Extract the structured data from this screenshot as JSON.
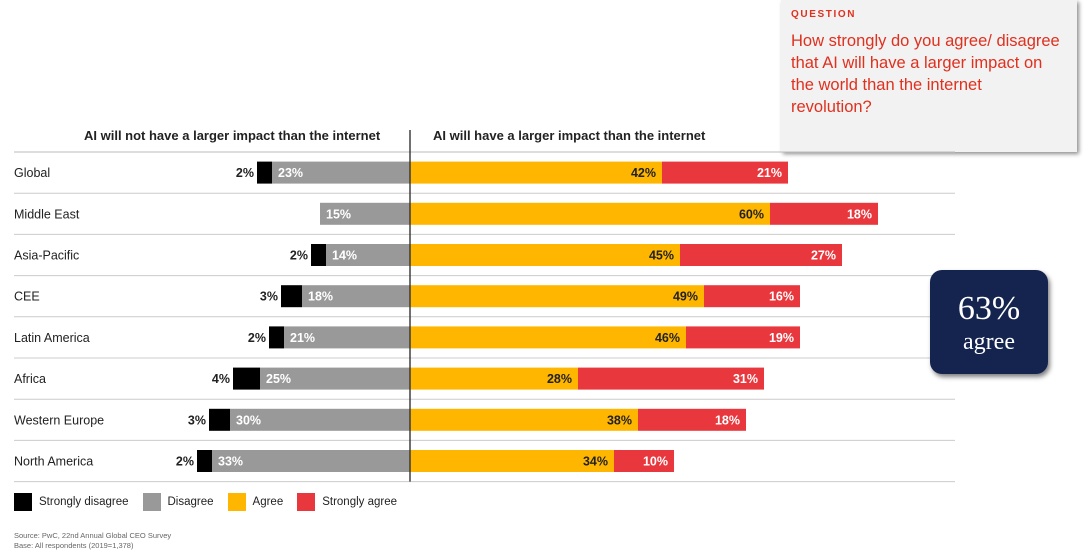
{
  "question": {
    "label": "QUESTION",
    "text": "How strongly do you agree/ disagree that AI will have a larger impact on the world than the internet revolution?"
  },
  "badge": {
    "value": "63%",
    "label": "agree"
  },
  "source": {
    "line1": "Source: PwC, 22nd Annual Global CEO Survey",
    "line2": "Base: All respondents (2019=1,378)"
  },
  "chart_data": {
    "type": "bar",
    "orientation": "horizontal-diverging",
    "left_heading": "AI will not have a larger impact than the internet",
    "right_heading": "AI will have a larger impact than the internet",
    "categories": [
      "Global",
      "Middle East",
      "Asia-Pacific",
      "CEE",
      "Latin America",
      "Africa",
      "Western Europe",
      "North America"
    ],
    "series": [
      {
        "name": "Strongly disagree",
        "color": "#000000",
        "side": "left",
        "values": [
          2,
          0,
          2,
          3,
          2,
          4,
          3,
          2
        ]
      },
      {
        "name": "Disagree",
        "color": "#999999",
        "side": "left",
        "values": [
          23,
          15,
          14,
          18,
          21,
          25,
          30,
          33
        ]
      },
      {
        "name": "Agree",
        "color": "#ffb600",
        "side": "right",
        "values": [
          42,
          60,
          45,
          49,
          46,
          28,
          38,
          34
        ]
      },
      {
        "name": "Strongly agree",
        "color": "#e8383d",
        "side": "right",
        "values": [
          21,
          18,
          27,
          16,
          19,
          31,
          18,
          10
        ]
      }
    ],
    "legend": [
      "Strongly disagree",
      "Disagree",
      "Agree",
      "Strongly agree"
    ],
    "legend_position": "bottom-left"
  }
}
